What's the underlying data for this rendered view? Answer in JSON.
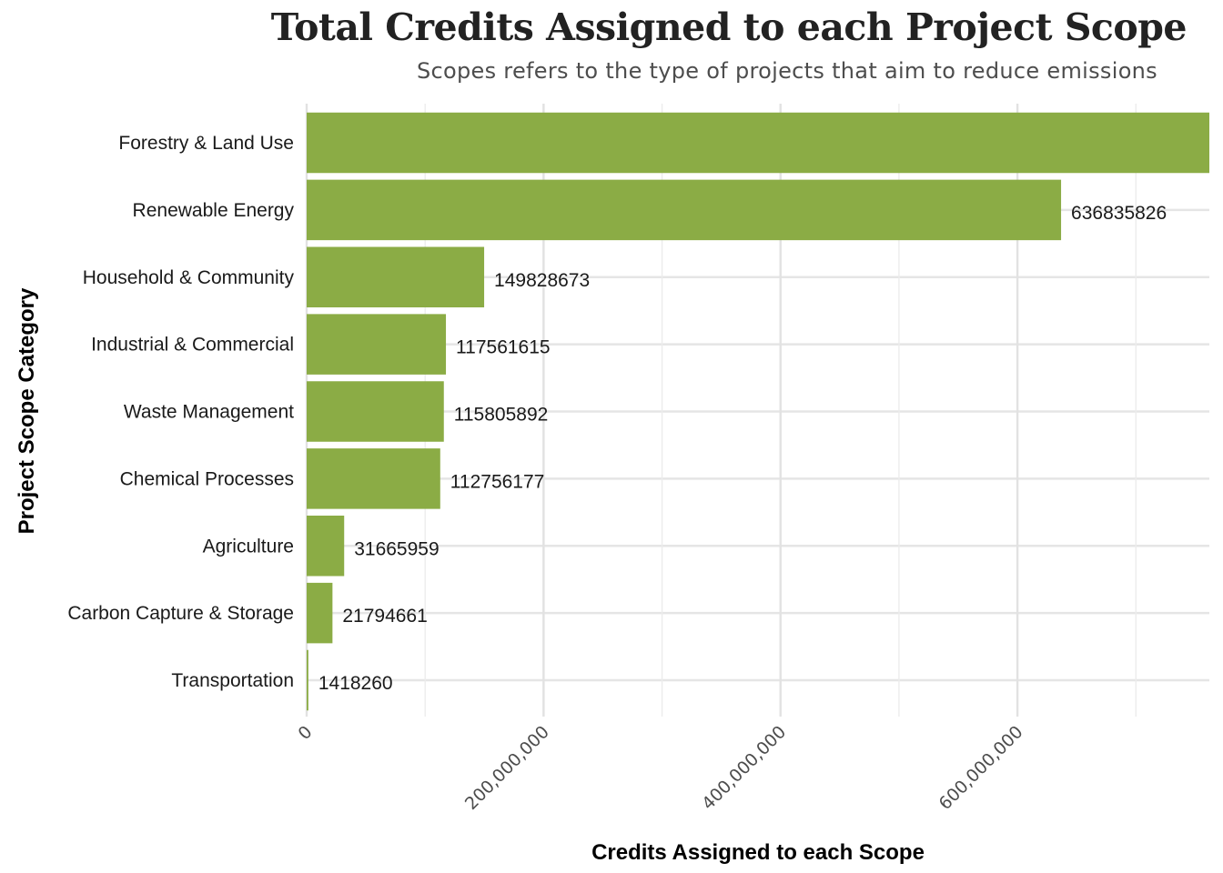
{
  "chart_data": {
    "type": "bar",
    "orientation": "horizontal",
    "title": "Total Credits Assigned to each Project Scope",
    "subtitle": "Scopes refers to the type of projects that aim to reduce emissions",
    "xlabel": "Credits Assigned to each Scope",
    "ylabel": "Project Scope Category",
    "categories": [
      "Forestry & Land Use",
      "Renewable Energy",
      "Household & Community",
      "Industrial & Commercial",
      "Waste Management",
      "Chemical Processes",
      "Agriculture",
      "Carbon Capture & Storage",
      "Transportation"
    ],
    "values": [
      780000000,
      636835826,
      149828673,
      117561615,
      115805892,
      112756177,
      31665959,
      21794661,
      1418260
    ],
    "value_labels": [
      "",
      "636835826",
      "149828673",
      "117561615",
      "115805892",
      "112756177",
      "31665959",
      "21794661",
      "1418260"
    ],
    "xlim": [
      0,
      762000000
    ],
    "x_ticks": [
      0,
      200000000,
      400000000,
      600000000
    ],
    "x_tick_labels": [
      "0",
      "200,000,000",
      "400,000,000",
      "600,000,000"
    ],
    "x_minor_ticks": [
      100000000,
      300000000,
      500000000,
      700000000
    ],
    "bar_color": "#8BAC45",
    "grid": true,
    "legend": "none"
  }
}
